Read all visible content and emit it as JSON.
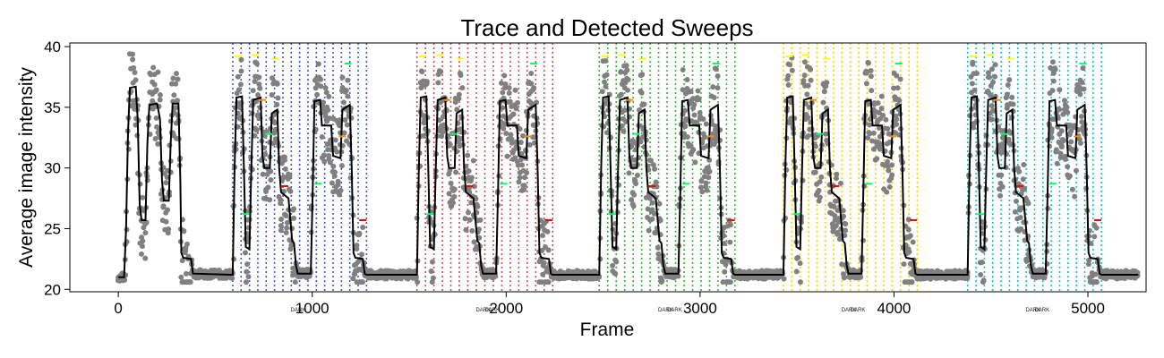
{
  "chart_data": {
    "type": "line",
    "title": "Trace and Detected Sweeps",
    "xlabel": "Frame",
    "ylabel": "Average image intensity",
    "xlim": [
      -250,
      5300
    ],
    "ylim": [
      19.8,
      40.3
    ],
    "xticks": [
      0,
      1000,
      2000,
      3000,
      4000,
      5000
    ],
    "yticks": [
      20,
      25,
      30,
      35,
      40
    ],
    "grid": false,
    "legend": "none",
    "colors": {
      "raw_points": "#808080",
      "smoothed_trace": "#000000",
      "marker_high": "#ffff00",
      "marker_mid": "#ff8c00",
      "marker_green": "#00ff66",
      "marker_low": "#ff0000"
    },
    "baseline_level": 21.2,
    "warmup_trace": [
      [
        0,
        21.0
      ],
      [
        30,
        21.0
      ],
      [
        40,
        25.0
      ],
      [
        50,
        33.0
      ],
      [
        60,
        36.6
      ],
      [
        90,
        36.7
      ],
      [
        100,
        34.0
      ],
      [
        110,
        27.0
      ],
      [
        120,
        25.7
      ],
      [
        140,
        25.7
      ],
      [
        150,
        32.0
      ],
      [
        160,
        35.2
      ],
      [
        200,
        35.3
      ],
      [
        215,
        34.0
      ],
      [
        225,
        29.0
      ],
      [
        235,
        27.3
      ],
      [
        260,
        27.3
      ],
      [
        270,
        32.0
      ],
      [
        280,
        35.3
      ],
      [
        310,
        35.3
      ],
      [
        320,
        29.0
      ],
      [
        325,
        23.0
      ],
      [
        335,
        22.6
      ],
      [
        375,
        22.5
      ],
      [
        385,
        21.3
      ],
      [
        590,
        21.2
      ]
    ],
    "sweep_template": {
      "duration": 720,
      "levels": [
        [
          0,
          21.3
        ],
        [
          10,
          30.0
        ],
        [
          20,
          35.8
        ],
        [
          50,
          35.9
        ],
        [
          60,
          30.0
        ],
        [
          70,
          23.5
        ],
        [
          90,
          23.3
        ],
        [
          100,
          30.0
        ],
        [
          110,
          35.6
        ],
        [
          150,
          35.8
        ],
        [
          160,
          31.0
        ],
        [
          170,
          30.0
        ],
        [
          200,
          30.0
        ],
        [
          210,
          34.5
        ],
        [
          240,
          34.8
        ],
        [
          250,
          30.0
        ],
        [
          260,
          28.0
        ],
        [
          300,
          27.5
        ],
        [
          320,
          24.0
        ],
        [
          330,
          23.8
        ],
        [
          340,
          22.0
        ],
        [
          350,
          21.3
        ],
        [
          420,
          21.3
        ],
        [
          430,
          28.0
        ],
        [
          440,
          35.5
        ],
        [
          470,
          35.6
        ],
        [
          480,
          33.5
        ],
        [
          530,
          33.5
        ],
        [
          540,
          31.0
        ],
        [
          580,
          30.8
        ],
        [
          590,
          34.8
        ],
        [
          630,
          35.2
        ],
        [
          640,
          30.0
        ],
        [
          650,
          23.0
        ],
        [
          660,
          22.6
        ],
        [
          700,
          22.5
        ],
        [
          710,
          21.3
        ],
        [
          720,
          21.2
        ]
      ]
    },
    "sweeps": [
      {
        "start": 590,
        "end": 1280,
        "color": "#3b5bc4",
        "dark_labels": [
          "DARK"
        ]
      },
      {
        "start": 1540,
        "end": 2240,
        "color": "#c45050",
        "dark_labels": [
          "DARK",
          "DARK"
        ]
      },
      {
        "start": 2480,
        "end": 3180,
        "color": "#2fb52f",
        "dark_labels": [
          "DARK",
          "DARK"
        ]
      },
      {
        "start": 3430,
        "end": 4120,
        "color": "#f2d300",
        "dark_labels": [
          "DARK",
          "DARK"
        ]
      },
      {
        "start": 4380,
        "end": 5070,
        "color": "#17becf",
        "dark_labels": [
          "DARK",
          "DARK"
        ]
      }
    ],
    "final_trace": [
      [
        5070,
        21.2
      ],
      [
        5260,
        21.2
      ]
    ],
    "marker_offsets": [
      {
        "dx": 30,
        "y": 39.2,
        "color": "#ffff00"
      },
      {
        "dx": 120,
        "y": 39.3,
        "color": "#ffff00"
      },
      {
        "dx": 230,
        "y": 39.0,
        "color": "#ffff00"
      },
      {
        "dx": 195,
        "y": 32.8,
        "color": "#00ff66"
      },
      {
        "dx": 70,
        "y": 26.2,
        "color": "#00ff66"
      },
      {
        "dx": 460,
        "y": 28.7,
        "color": "#00ff66"
      },
      {
        "dx": 620,
        "y": 38.6,
        "color": "#00ff66"
      },
      {
        "dx": 160,
        "y": 35.6,
        "color": "#ff8c00"
      },
      {
        "dx": 590,
        "y": 32.6,
        "color": "#ff8c00"
      },
      {
        "dx": 280,
        "y": 28.5,
        "color": "#ff0000"
      },
      {
        "dx": 700,
        "y": 25.7,
        "color": "#ff0000"
      }
    ]
  }
}
